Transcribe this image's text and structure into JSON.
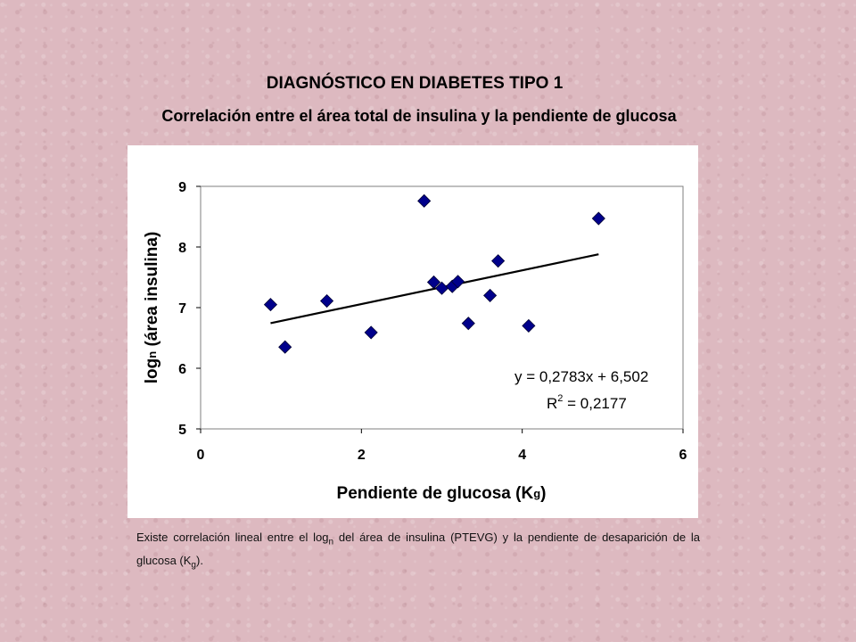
{
  "title": "DIAGNÓSTICO EN DIABETES TIPO 1",
  "subtitle": "Correlación entre el área total de insulina y la pendiente de glucosa",
  "chart_data": {
    "type": "scatter",
    "xlabel_main": "Pendiente de glucosa (K",
    "xlabel_sub": "g",
    "xlabel_end": ")",
    "ylabel_main": "log",
    "ylabel_sub": "n",
    "ylabel_end": " (área insulina)",
    "xlim": [
      0,
      6
    ],
    "ylim": [
      5,
      9
    ],
    "x_ticks": [
      "0",
      "2",
      "4",
      "6"
    ],
    "y_ticks": [
      "5",
      "6",
      "7",
      "8",
      "9"
    ],
    "grid": false,
    "marker_color": "#00008b",
    "points": [
      {
        "x": 0.87,
        "y": 7.05
      },
      {
        "x": 1.05,
        "y": 6.35
      },
      {
        "x": 1.57,
        "y": 7.11
      },
      {
        "x": 2.12,
        "y": 6.59
      },
      {
        "x": 2.78,
        "y": 8.76
      },
      {
        "x": 2.9,
        "y": 7.42
      },
      {
        "x": 3.0,
        "y": 7.32
      },
      {
        "x": 3.13,
        "y": 7.35
      },
      {
        "x": 3.2,
        "y": 7.43
      },
      {
        "x": 3.33,
        "y": 6.74
      },
      {
        "x": 3.6,
        "y": 7.2
      },
      {
        "x": 3.7,
        "y": 7.77
      },
      {
        "x": 4.08,
        "y": 6.7
      },
      {
        "x": 4.95,
        "y": 8.47
      }
    ],
    "trendline": {
      "slope": 0.2783,
      "intercept": 6.502,
      "x_range": [
        0.87,
        4.95
      ],
      "equation": "y = 0,2783x + 6,502",
      "r2_label": "R",
      "r2_exp": "2",
      "r2_value": " = 0,2177"
    }
  },
  "note": {
    "part1": "Existe correlación lineal entre el log",
    "sub1": "n",
    "part2": " del área de insulina (PTEVG) y la pendiente de desaparición de la glucosa (K",
    "sub2": "g",
    "part3": ")."
  }
}
